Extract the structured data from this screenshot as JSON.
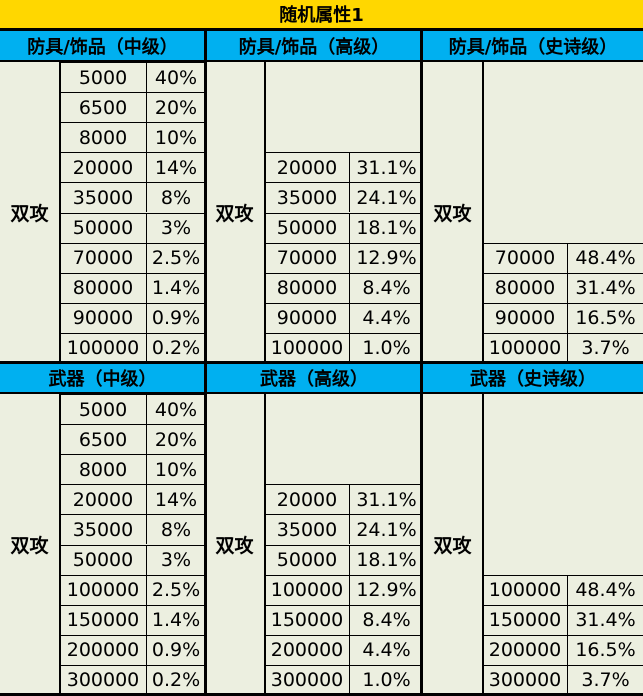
{
  "title": "随机属性1",
  "colors": {
    "title_bg": "#FFD700",
    "header_bg": "#00B0F0",
    "cell_bg": "#ECEFE0"
  },
  "top": {
    "sections": [
      {
        "header": "防具/饰品（中级）",
        "label": "双攻",
        "rows": [
          {
            "value": "5000",
            "pct": "40%"
          },
          {
            "value": "6500",
            "pct": "20%"
          },
          {
            "value": "8000",
            "pct": "10%"
          },
          {
            "value": "20000",
            "pct": "14%"
          },
          {
            "value": "35000",
            "pct": "8%"
          },
          {
            "value": "50000",
            "pct": "3%"
          },
          {
            "value": "70000",
            "pct": "2.5%"
          },
          {
            "value": "80000",
            "pct": "1.4%"
          },
          {
            "value": "90000",
            "pct": "0.9%"
          },
          {
            "value": "100000",
            "pct": "0.2%"
          }
        ]
      },
      {
        "header": "防具/饰品（高级）",
        "label": "双攻",
        "rows": [
          {
            "value": "",
            "pct": ""
          },
          {
            "value": "",
            "pct": ""
          },
          {
            "value": "",
            "pct": ""
          },
          {
            "value": "20000",
            "pct": "31.1%"
          },
          {
            "value": "35000",
            "pct": "24.1%"
          },
          {
            "value": "50000",
            "pct": "18.1%"
          },
          {
            "value": "70000",
            "pct": "12.9%"
          },
          {
            "value": "80000",
            "pct": "8.4%"
          },
          {
            "value": "90000",
            "pct": "4.4%"
          },
          {
            "value": "100000",
            "pct": "1.0%"
          }
        ]
      },
      {
        "header": "防具/饰品（史诗级）",
        "label": "双攻",
        "rows": [
          {
            "value": "",
            "pct": ""
          },
          {
            "value": "",
            "pct": ""
          },
          {
            "value": "",
            "pct": ""
          },
          {
            "value": "",
            "pct": ""
          },
          {
            "value": "",
            "pct": ""
          },
          {
            "value": "",
            "pct": ""
          },
          {
            "value": "70000",
            "pct": "48.4%"
          },
          {
            "value": "80000",
            "pct": "31.4%"
          },
          {
            "value": "90000",
            "pct": "16.5%"
          },
          {
            "value": "100000",
            "pct": "3.7%"
          }
        ]
      }
    ]
  },
  "bottom": {
    "sections": [
      {
        "header": "武器（中级）",
        "label": "双攻",
        "rows": [
          {
            "value": "5000",
            "pct": "40%"
          },
          {
            "value": "6500",
            "pct": "20%"
          },
          {
            "value": "8000",
            "pct": "10%"
          },
          {
            "value": "20000",
            "pct": "14%"
          },
          {
            "value": "35000",
            "pct": "8%"
          },
          {
            "value": "50000",
            "pct": "3%"
          },
          {
            "value": "100000",
            "pct": "2.5%"
          },
          {
            "value": "150000",
            "pct": "1.4%"
          },
          {
            "value": "200000",
            "pct": "0.9%"
          },
          {
            "value": "300000",
            "pct": "0.2%"
          }
        ]
      },
      {
        "header": "武器（高级）",
        "label": "双攻",
        "rows": [
          {
            "value": "",
            "pct": ""
          },
          {
            "value": "",
            "pct": ""
          },
          {
            "value": "",
            "pct": ""
          },
          {
            "value": "20000",
            "pct": "31.1%"
          },
          {
            "value": "35000",
            "pct": "24.1%"
          },
          {
            "value": "50000",
            "pct": "18.1%"
          },
          {
            "value": "100000",
            "pct": "12.9%"
          },
          {
            "value": "150000",
            "pct": "8.4%"
          },
          {
            "value": "200000",
            "pct": "4.4%"
          },
          {
            "value": "300000",
            "pct": "1.0%"
          }
        ]
      },
      {
        "header": "武器（史诗级）",
        "label": "双攻",
        "rows": [
          {
            "value": "",
            "pct": ""
          },
          {
            "value": "",
            "pct": ""
          },
          {
            "value": "",
            "pct": ""
          },
          {
            "value": "",
            "pct": ""
          },
          {
            "value": "",
            "pct": ""
          },
          {
            "value": "",
            "pct": ""
          },
          {
            "value": "100000",
            "pct": "48.4%"
          },
          {
            "value": "150000",
            "pct": "31.4%"
          },
          {
            "value": "200000",
            "pct": "16.5%"
          },
          {
            "value": "300000",
            "pct": "3.7%"
          }
        ]
      }
    ]
  }
}
